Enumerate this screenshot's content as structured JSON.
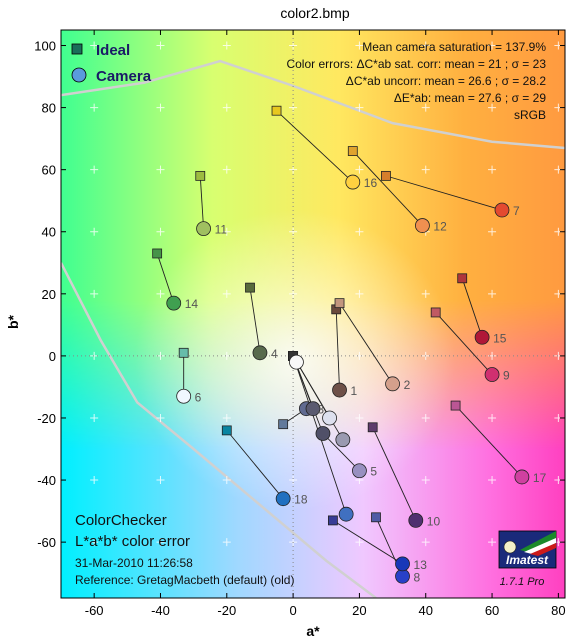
{
  "window_title": "color2.bmp",
  "chart_data": {
    "type": "scatter",
    "title": "color2.bmp",
    "xlabel": "a*",
    "ylabel": "b*",
    "xlim": [
      -70,
      82
    ],
    "ylim": [
      -78,
      105
    ],
    "x_ticks": [
      -60,
      -40,
      -20,
      0,
      20,
      40,
      60,
      80
    ],
    "y_ticks": [
      -60,
      -40,
      -20,
      0,
      20,
      40,
      60,
      80,
      100
    ],
    "grid": true,
    "legend": {
      "position": "top-left",
      "entries": [
        {
          "name": "Ideal",
          "marker": "square",
          "color": "#1a6e5a"
        },
        {
          "name": "Camera",
          "marker": "circle",
          "color": "#5a9bdc"
        }
      ]
    },
    "stats_lines": [
      "Mean camera saturation = 137.9%",
      "Color errors:  ΔC*ab sat. corr:  mean = 21 ;  σ = 23",
      "ΔC*ab uncorr:  mean = 26.6 ;  σ = 28.2",
      "ΔE*ab:  mean = 27.6 ;  σ = 29",
      "sRGB"
    ],
    "patches": [
      {
        "id": "1",
        "ideal": [
          13,
          15
        ],
        "camera": [
          14,
          -11
        ],
        "ideal_color": "#6a4a3c",
        "camera_color": "#6e5048",
        "label": "1"
      },
      {
        "id": "2",
        "ideal": [
          14,
          17
        ],
        "camera": [
          30,
          -9
        ],
        "ideal_color": "#c2967e",
        "camera_color": "#d4a08c",
        "label": "2"
      },
      {
        "id": "3",
        "ideal": [
          -3,
          -22
        ],
        "camera": [
          4,
          -17
        ],
        "ideal_color": "#627a9c",
        "camera_color": "#606a90",
        "label": "3"
      },
      {
        "id": "4",
        "ideal": [
          -13,
          22
        ],
        "camera": [
          -10,
          1
        ],
        "ideal_color": "#586a3c",
        "camera_color": "#586a4c",
        "label": "4"
      },
      {
        "id": "5",
        "ideal": [
          9,
          -25
        ],
        "camera": [
          20,
          -37
        ],
        "ideal_color": "#8580b1",
        "camera_color": "#9890c0",
        "label": "5"
      },
      {
        "id": "6",
        "ideal": [
          -33,
          1
        ],
        "camera": [
          -33,
          -13
        ],
        "ideal_color": "#67bdaa",
        "camera_color": "#f0f8ff",
        "label": "6"
      },
      {
        "id": "7",
        "ideal": [
          28,
          58
        ],
        "camera": [
          63,
          47
        ],
        "ideal_color": "#d67e2c",
        "camera_color": "#e44a30",
        "label": "7"
      },
      {
        "id": "8",
        "ideal": [
          25,
          -52
        ],
        "camera": [
          33,
          -71
        ],
        "ideal_color": "#505ba6",
        "camera_color": "#2840c8",
        "label": "8"
      },
      {
        "id": "9",
        "ideal": [
          43,
          14
        ],
        "camera": [
          60,
          -6
        ],
        "ideal_color": "#c15a63",
        "camera_color": "#d03070",
        "label": "9"
      },
      {
        "id": "10",
        "ideal": [
          24,
          -23
        ],
        "camera": [
          37,
          -53
        ],
        "ideal_color": "#5e3c6c",
        "camera_color": "#503070",
        "label": "10"
      },
      {
        "id": "11",
        "ideal": [
          -28,
          58
        ],
        "camera": [
          -27,
          41
        ],
        "ideal_color": "#9dbc40",
        "camera_color": "#a0c060",
        "label": "11"
      },
      {
        "id": "12",
        "ideal": [
          18,
          66
        ],
        "camera": [
          39,
          42
        ],
        "ideal_color": "#e0a32e",
        "camera_color": "#f09050",
        "label": "12"
      },
      {
        "id": "13",
        "ideal": [
          12,
          -53
        ],
        "camera": [
          33,
          -67
        ],
        "ideal_color": "#383d96",
        "camera_color": "#1838b8",
        "label": "13"
      },
      {
        "id": "14",
        "ideal": [
          -41,
          33
        ],
        "camera": [
          -36,
          17
        ],
        "ideal_color": "#469449",
        "camera_color": "#40a050",
        "label": "14"
      },
      {
        "id": "15",
        "ideal": [
          51,
          25
        ],
        "camera": [
          57,
          6
        ],
        "ideal_color": "#af363c",
        "camera_color": "#b01838",
        "label": "15"
      },
      {
        "id": "16",
        "ideal": [
          -5,
          79
        ],
        "camera": [
          18,
          56
        ],
        "ideal_color": "#e7c71f",
        "camera_color": "#ffd040",
        "label": "16"
      },
      {
        "id": "17",
        "ideal": [
          49,
          -16
        ],
        "camera": [
          69,
          -39
        ],
        "ideal_color": "#bb5695",
        "camera_color": "#d040a0",
        "label": "17"
      },
      {
        "id": "18",
        "ideal": [
          -20,
          -24
        ],
        "camera": [
          -3,
          -46
        ],
        "ideal_color": "#0885a1",
        "camera_color": "#2070c0",
        "label": "18"
      },
      {
        "id": "19",
        "ideal": [
          0,
          0
        ],
        "camera": [
          1,
          -2
        ],
        "ideal_color": "#f3f3f2",
        "camera_color": "#f8f8f8",
        "label": ""
      },
      {
        "id": "20",
        "ideal": [
          0,
          0
        ],
        "camera": [
          11,
          -20
        ],
        "ideal_color": "#c8c8c8",
        "camera_color": "#dde0ee",
        "label": ""
      },
      {
        "id": "21",
        "ideal": [
          0,
          0
        ],
        "camera": [
          15,
          -27
        ],
        "ideal_color": "#a0a0a0",
        "camera_color": "#9a9ab0",
        "label": ""
      },
      {
        "id": "22",
        "ideal": [
          0,
          0
        ],
        "camera": [
          6,
          -17
        ],
        "ideal_color": "#7a7a79",
        "camera_color": "#5a5a70",
        "label": ""
      },
      {
        "id": "23",
        "ideal": [
          0,
          0
        ],
        "camera": [
          9,
          -25
        ],
        "ideal_color": "#555555",
        "camera_color": "#505068",
        "label": ""
      },
      {
        "id": "24",
        "ideal": [
          0,
          0
        ],
        "camera": [
          16,
          -51
        ],
        "ideal_color": "#343434",
        "camera_color": "#4070c0",
        "label": ""
      }
    ]
  },
  "panel": {
    "title": "ColorChecker",
    "subtitle": "L*a*b* color error",
    "date": "31-Mar-2010 11:26:58",
    "reference": "Reference: GretagMacbeth (default) (old)"
  },
  "logo": {
    "text": "Imatest",
    "version": "1.7.1  Pro"
  }
}
